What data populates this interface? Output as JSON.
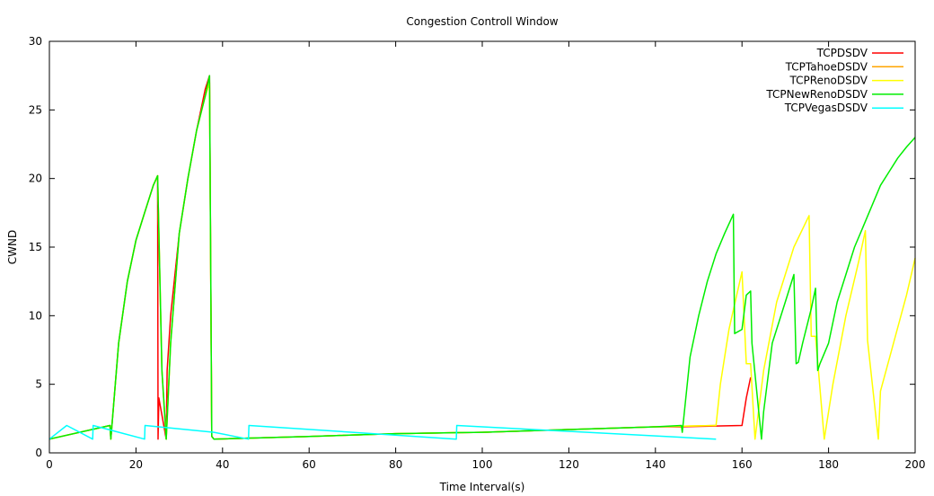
{
  "chart_data": {
    "type": "line",
    "title": "Congestion Controll Window",
    "xlabel": "Time Interval(s)",
    "ylabel": "CWND",
    "xlim": [
      0,
      200
    ],
    "ylim": [
      0,
      30
    ],
    "xticks": [
      0,
      20,
      40,
      60,
      80,
      100,
      120,
      140,
      160,
      180,
      200
    ],
    "yticks": [
      0,
      5,
      10,
      15,
      20,
      25,
      30
    ],
    "grid": false,
    "legend_position": "top-right",
    "series": [
      {
        "name": "TCPDSDV",
        "color": "#ff0000",
        "x": [
          0,
          14,
          14.2,
          16,
          18,
          20,
          22,
          24,
          25,
          25.1,
          25.3,
          27,
          27.2,
          28,
          30,
          32,
          34,
          36,
          37,
          37.5,
          38,
          60,
          80,
          100,
          120,
          140,
          146,
          160,
          161,
          162
        ],
        "y": [
          1,
          2,
          1,
          8,
          12.5,
          15.5,
          17.5,
          19.5,
          20.2,
          1,
          4,
          1,
          6,
          10,
          16,
          20,
          23.5,
          26.5,
          27.5,
          1.2,
          1,
          1.2,
          1.4,
          1.5,
          1.7,
          1.9,
          1.9,
          2,
          4,
          5.5
        ]
      },
      {
        "name": "TCPTahoeDSDV",
        "color": "#ffa500",
        "x": [
          0,
          14,
          14.2,
          16,
          18,
          20,
          22,
          24,
          25,
          26,
          27,
          28,
          30,
          32,
          34,
          36,
          37,
          37.5,
          38,
          60,
          80,
          100,
          120,
          140,
          154
        ],
        "y": [
          1,
          2,
          1,
          8,
          12.5,
          15.5,
          17.5,
          19.5,
          20.2,
          6,
          1,
          8,
          16,
          20,
          23.5,
          26,
          27,
          1.2,
          1,
          1.2,
          1.4,
          1.5,
          1.7,
          1.9,
          2
        ]
      },
      {
        "name": "TCPRenoDSDV",
        "color": "#ffff00",
        "x": [
          0,
          14,
          14.2,
          16,
          18,
          20,
          22,
          24,
          25,
          26,
          27,
          28,
          30,
          32,
          34,
          36,
          37,
          37.5,
          38,
          60,
          80,
          100,
          120,
          140,
          154,
          155,
          157,
          160,
          161,
          162,
          163,
          165,
          168,
          172,
          175.5,
          176,
          177,
          179,
          181,
          184,
          187,
          188.5,
          189,
          191.5,
          192,
          195,
          198,
          200
        ],
        "y": [
          1,
          2,
          1,
          8,
          12.5,
          15.5,
          17.5,
          19.5,
          20.2,
          6,
          1,
          8,
          16,
          20,
          23.5,
          26,
          27,
          1.2,
          1,
          1.2,
          1.4,
          1.5,
          1.7,
          1.9,
          2,
          5,
          9,
          13.2,
          6.5,
          6.5,
          1,
          6,
          11,
          15,
          17.3,
          8.5,
          8.5,
          1,
          5,
          10,
          14,
          16.2,
          8.2,
          1,
          4.5,
          8,
          11.5,
          14.2
        ]
      },
      {
        "name": "TCPNewRenoDSDV",
        "color": "#00ee00",
        "x": [
          0,
          14,
          14.2,
          16,
          18,
          20,
          22,
          24,
          25,
          26,
          27,
          28,
          30,
          32,
          34,
          36,
          37,
          37.5,
          38,
          60,
          80,
          100,
          120,
          140,
          146,
          146.2,
          148,
          150,
          152,
          154,
          156,
          158,
          158.3,
          160,
          161,
          162,
          162.3,
          164.5,
          165,
          167,
          170,
          172,
          172.5,
          173,
          174,
          176,
          177,
          177.5,
          178,
          180,
          182,
          184,
          186,
          188,
          190,
          192,
          194,
          196,
          198,
          200
        ],
        "y": [
          1,
          2,
          1,
          8,
          12.5,
          15.5,
          17.5,
          19.5,
          20.2,
          6,
          1,
          8,
          16,
          20,
          23.5,
          26,
          27.5,
          1.2,
          1,
          1.2,
          1.4,
          1.5,
          1.7,
          1.9,
          2,
          1.5,
          7,
          10,
          12.5,
          14.5,
          16,
          17.4,
          8.7,
          9,
          11.5,
          11.8,
          8,
          1,
          3,
          8,
          11,
          13,
          6.5,
          6.6,
          8,
          10.5,
          12,
          6,
          6.5,
          8,
          11,
          13,
          15,
          16.5,
          18,
          19.5,
          20.5,
          21.5,
          22.3,
          23
        ]
      },
      {
        "name": "TCPVegasDSDV",
        "color": "#00ffff",
        "x": [
          0,
          4,
          10,
          10.1,
          22,
          22.1,
          38,
          46,
          46.1,
          94,
          94.1,
          154
        ],
        "y": [
          1,
          2,
          1,
          2,
          1,
          2,
          1.5,
          1,
          2,
          1,
          2,
          1
        ]
      }
    ]
  }
}
